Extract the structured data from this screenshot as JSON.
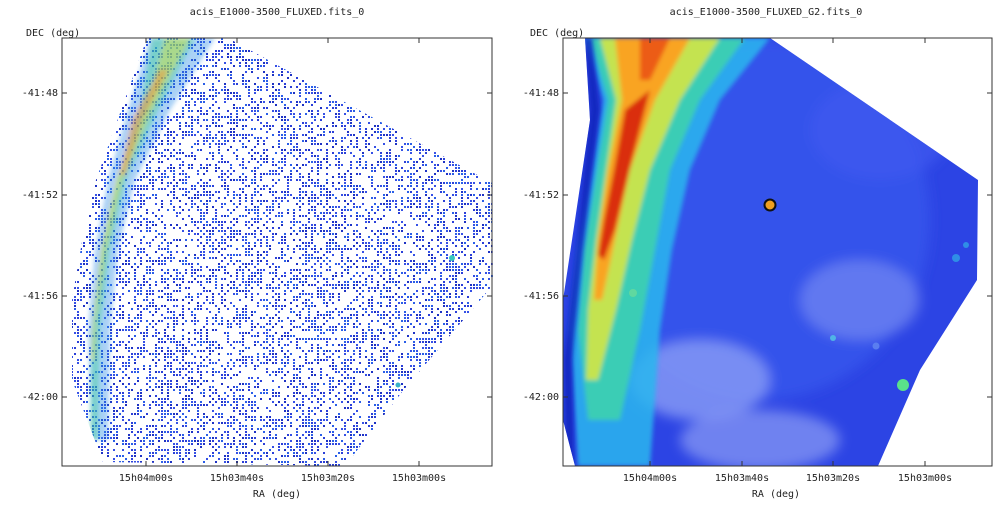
{
  "chart_data": [
    {
      "type": "heatmap",
      "title": "acis_E1000-3500_FLUXED.fits_0",
      "xlabel": "RA (deg)",
      "ylabel": "DEC (deg)",
      "x_ticks": [
        "15h04m00s",
        "15h03m40s",
        "15h03m20s",
        "15h03m00s"
      ],
      "y_ticks": [
        "-41:48",
        "-41:52",
        "-41:56",
        "-42:00"
      ],
      "smoothed": false
    },
    {
      "type": "heatmap",
      "title": "acis_E1000-3500_FLUXED_G2.fits_0",
      "xlabel": "RA (deg)",
      "ylabel": "DEC (deg)",
      "x_ticks": [
        "15h04m00s",
        "15h03m40s",
        "15h03m20s",
        "15h03m00s"
      ],
      "y_ticks": [
        "-41:48",
        "-41:52",
        "-41:56",
        "-42:00"
      ],
      "smoothed": true
    }
  ]
}
